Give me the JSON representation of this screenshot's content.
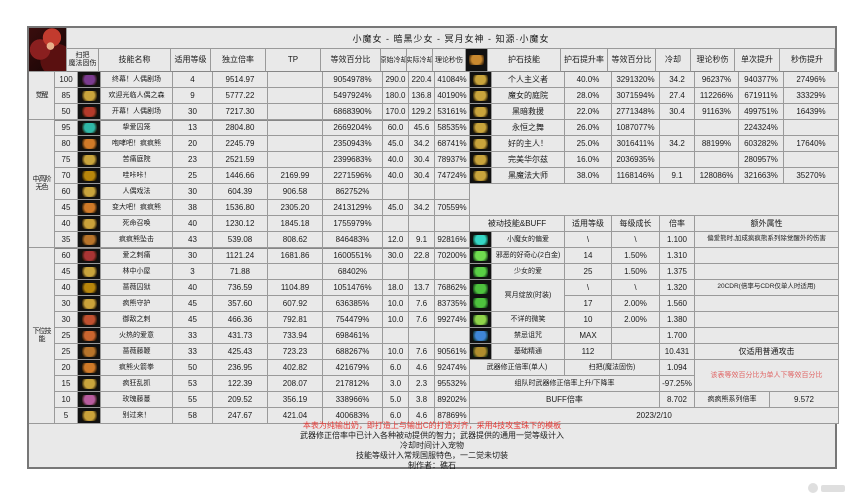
{
  "title": "小魔女 - 暗黑少女 - 冥月女神 - 知源·小魔女",
  "headers": {
    "sweep": "扫把\n魔法固伤",
    "skill": [
      "技能名称",
      "适用等级",
      "独立倍率",
      "TP",
      "等效百分比",
      "原始冷却",
      "实际冷却",
      "理论秒伤"
    ],
    "stone": [
      "护石技能",
      "护石提升率",
      "等效百分比",
      "冷却",
      "理论秒伤",
      "单次提升",
      "秒伤提升"
    ],
    "passive": [
      "被动技能&BUFF",
      "适用等级",
      "每级成长",
      "倍率",
      "额外属性"
    ]
  },
  "groups": [
    "觉醒",
    "中高阶无色",
    "下位技能"
  ],
  "skills": [
    {
      "level": "100",
      "name": "终幕！人偶剧场",
      "apply": "4",
      "rate": "9514.97",
      "tp": "",
      "eq": "9054978%",
      "cd_raw": "290.0",
      "cd_real": "220.4",
      "dps": "41084%"
    },
    {
      "level": "85",
      "name": "欢迎光临人偶之森",
      "apply": "9",
      "rate": "5777.22",
      "tp": "",
      "eq": "5497924%",
      "cd_raw": "180.0",
      "cd_real": "136.8",
      "dps": "40190%"
    },
    {
      "level": "50",
      "name": "开幕！人偶剧场",
      "apply": "30",
      "rate": "7217.30",
      "tp": "",
      "eq": "6868390%",
      "cd_raw": "170.0",
      "cd_real": "129.2",
      "dps": "53161%"
    },
    {
      "level": "95",
      "name": "挚爱囚笼",
      "apply": "13",
      "rate": "2804.80",
      "tp": "",
      "eq": "2669204%",
      "cd_raw": "60.0",
      "cd_real": "45.6",
      "dps": "58535%"
    },
    {
      "level": "80",
      "name": "咆哮吧！疯疯熊",
      "apply": "20",
      "rate": "2245.79",
      "tp": "",
      "eq": "2350943%",
      "cd_raw": "45.0",
      "cd_real": "34.2",
      "dps": "68741%"
    },
    {
      "level": "75",
      "name": "苦痛庭院",
      "apply": "23",
      "rate": "2521.59",
      "tp": "",
      "eq": "2399683%",
      "cd_raw": "40.0",
      "cd_real": "30.4",
      "dps": "78937%"
    },
    {
      "level": "70",
      "name": "哇咔咔！",
      "apply": "25",
      "rate": "1446.66",
      "tp": "2169.99",
      "eq": "2271596%",
      "cd_raw": "40.0",
      "cd_real": "30.4",
      "dps": "74724%"
    },
    {
      "level": "60",
      "name": "人偶戏法",
      "apply": "30",
      "rate": "604.39",
      "tp": "906.58",
      "eq": "862752%",
      "cd_raw": "",
      "cd_real": "",
      "dps": ""
    },
    {
      "level": "45",
      "name": "变大吧！疯疯熊",
      "apply": "38",
      "rate": "1536.80",
      "tp": "2305.20",
      "eq": "2413129%",
      "cd_raw": "45.0",
      "cd_real": "34.2",
      "dps": "70559%"
    },
    {
      "level": "40",
      "name": "死命召唤",
      "apply": "40",
      "rate": "1230.12",
      "tp": "1845.18",
      "eq": "1755979%",
      "cd_raw": "",
      "cd_real": "",
      "dps": ""
    },
    {
      "level": "35",
      "name": "疯疯熊坠击",
      "apply": "43",
      "rate": "539.08",
      "tp": "808.62",
      "eq": "846483%",
      "cd_raw": "12.0",
      "cd_real": "9.1",
      "dps": "92816%"
    },
    {
      "level": "60",
      "name": "爱之刺痛",
      "apply": "30",
      "rate": "1121.24",
      "tp": "1681.86",
      "eq": "1600551%",
      "cd_raw": "30.0",
      "cd_real": "22.8",
      "dps": "70200%"
    },
    {
      "level": "45",
      "name": "林中小屋",
      "apply": "3",
      "rate": "71.88",
      "tp": "",
      "eq": "68402%",
      "cd_raw": "",
      "cd_real": "",
      "dps": ""
    },
    {
      "level": "40",
      "name": "蔷薇囚狱",
      "apply": "40",
      "rate": "736.59",
      "tp": "1104.89",
      "eq": "1051476%",
      "cd_raw": "18.0",
      "cd_real": "13.7",
      "dps": "76862%"
    },
    {
      "level": "30",
      "name": "疯熊守护",
      "apply": "45",
      "rate": "357.60",
      "tp": "607.92",
      "eq": "636385%",
      "cd_raw": "10.0",
      "cd_real": "7.6",
      "dps": "83735%"
    },
    {
      "level": "30",
      "name": "御敌之刺",
      "apply": "45",
      "rate": "466.36",
      "tp": "792.81",
      "eq": "754479%",
      "cd_raw": "10.0",
      "cd_real": "7.6",
      "dps": "99274%"
    },
    {
      "level": "25",
      "name": "火热的爱意",
      "apply": "33",
      "rate": "431.73",
      "tp": "733.94",
      "eq": "698461%",
      "cd_raw": "",
      "cd_real": "",
      "dps": ""
    },
    {
      "level": "25",
      "name": "蔷薇藤鞭",
      "apply": "33",
      "rate": "425.43",
      "tp": "723.23",
      "eq": "688267%",
      "cd_raw": "10.0",
      "cd_real": "7.6",
      "dps": "90561%"
    },
    {
      "level": "20",
      "name": "疯熊火箭拳",
      "apply": "50",
      "rate": "236.95",
      "tp": "402.82",
      "eq": "421679%",
      "cd_raw": "6.0",
      "cd_real": "4.6",
      "dps": "92474%"
    },
    {
      "level": "15",
      "name": "疯狂乱抓",
      "apply": "53",
      "rate": "122.39",
      "tp": "208.07",
      "eq": "217812%",
      "cd_raw": "3.0",
      "cd_real": "2.3",
      "dps": "95532%"
    },
    {
      "level": "10",
      "name": "玫瑰藤蔓",
      "apply": "55",
      "rate": "209.52",
      "tp": "356.19",
      "eq": "338966%",
      "cd_raw": "5.0",
      "cd_real": "3.8",
      "dps": "89202%"
    },
    {
      "level": "5",
      "name": "别过来！",
      "apply": "58",
      "rate": "247.67",
      "tp": "421.04",
      "eq": "400683%",
      "cd_raw": "6.0",
      "cd_real": "4.6",
      "dps": "87869%"
    }
  ],
  "stones": [
    {
      "name": "个人主义者",
      "boost": "40.0%",
      "eq": "3291320%",
      "cd": "34.2",
      "dps": "96237%",
      "single": "940377%",
      "persec": "27496%"
    },
    {
      "name": "魔女的庭院",
      "boost": "28.0%",
      "eq": "3071594%",
      "cd": "27.4",
      "dps": "112266%",
      "single": "671911%",
      "persec": "33329%"
    },
    {
      "name": "黑暗救援",
      "boost": "22.0%",
      "eq": "2771348%",
      "cd": "30.4",
      "dps": "91163%",
      "single": "499751%",
      "persec": "16439%"
    },
    {
      "name": "永恒之舞",
      "boost": "26.0%",
      "eq": "1087077%",
      "cd": "",
      "dps": "",
      "single": "224324%",
      "persec": ""
    },
    {
      "name": "好的主人！",
      "boost": "25.0%",
      "eq": "3016411%",
      "cd": "34.2",
      "dps": "88199%",
      "single": "603282%",
      "persec": "17640%"
    },
    {
      "name": "完美华尔兹",
      "boost": "16.0%",
      "eq": "2036935%",
      "cd": "",
      "dps": "",
      "single": "280957%",
      "persec": ""
    },
    {
      "name": "黑魔法大师",
      "boost": "38.0%",
      "eq": "1168146%",
      "cd": "9.1",
      "dps": "128086%",
      "single": "321663%",
      "persec": "35270%"
    }
  ],
  "passives": {
    "p0": {
      "name": "小魔女的偏爱",
      "lvl": "\\",
      "growth": "\\",
      "rate": "1.100",
      "extra": "偏爱熊时,加成疯疯熊系列除觉醒外的伤害"
    },
    "p1": {
      "name": "邪恶的好奇心(2白金)",
      "lvl": "14",
      "growth": "1.50%",
      "rate": "1.310",
      "extra": ""
    },
    "p2": {
      "name": "少女的爱",
      "lvl": "25",
      "growth": "1.50%",
      "rate": "1.375",
      "extra": ""
    },
    "p3": {
      "name": "冥月绽放(时装)",
      "lvl1": "\\",
      "growth1": "\\",
      "rate1": "1.320",
      "extra1": "20CDR(倍率与CDR仅单人时适用)",
      "lvl2": "17",
      "growth2": "2.00%",
      "rate2": "1.560",
      "extra2": ""
    },
    "p4": {
      "name": "不详的微笑",
      "lvl": "10",
      "growth": "2.00%",
      "rate": "1.380",
      "extra": ""
    },
    "p5": {
      "name": "禁忌诅咒",
      "lvl": "MAX",
      "growth": "",
      "rate": "1.700",
      "extra": ""
    },
    "p6": {
      "name": "基础精通",
      "lvl": "112",
      "growth": "",
      "rate": "10.431",
      "extra": "仅适用普通攻击"
    },
    "weapon": {
      "name": "武器修正倍率(单人)",
      "mid": "扫把(魔法固伤)",
      "rate": "1.094"
    },
    "team": {
      "name": "组队时武器修正倍率上升/下降率",
      "rate": "-97.25%"
    },
    "solo_note": "该表等效百分比为单人下等效百分比",
    "buff": {
      "name": "BUFF倍率",
      "rate": "8.702",
      "series_name": "疯疯熊系列倍率",
      "series_rate": "9.572"
    },
    "date": "2023/2/10"
  },
  "notes": [
    "本表为纯输出奶，即打造上与输出C的打造对齐，采用4技攻宝珠下的模板",
    "武器修正倍率中已计入各种被动提供的智力；武器提供的通用一觉等级计入",
    "冷却时间计入宠物",
    "技能等级计入常规国服特色，一二觉未切装",
    "制作者：礁石"
  ],
  "colors": {
    "note_red": "#e53935",
    "soft_red": "#e06666",
    "stone_icon": "#c9a43c",
    "header_icon": "#c9892f",
    "skill_icons": [
      "#7a3b8f",
      "#c9a43c",
      "#b43a2a",
      "#2fb8a8",
      "#d07a28",
      "#c9a43c",
      "#b8860b",
      "#c9a43c",
      "#d07a28",
      "#caa23a",
      "#b8742a",
      "#a93434",
      "#c9a43c",
      "#b8860b",
      "#caa23a",
      "#c05030",
      "#c9652f",
      "#b8742a",
      "#d07a28",
      "#c9a43c",
      "#b85c9e",
      "#caa23a"
    ],
    "passive_icons": [
      "#35d6c5",
      "#6fdc4f",
      "#59cf45",
      "#4ec23e",
      "#4ec23e",
      "#8fd44a",
      "#3f86d6",
      "#b08d2e"
    ]
  }
}
